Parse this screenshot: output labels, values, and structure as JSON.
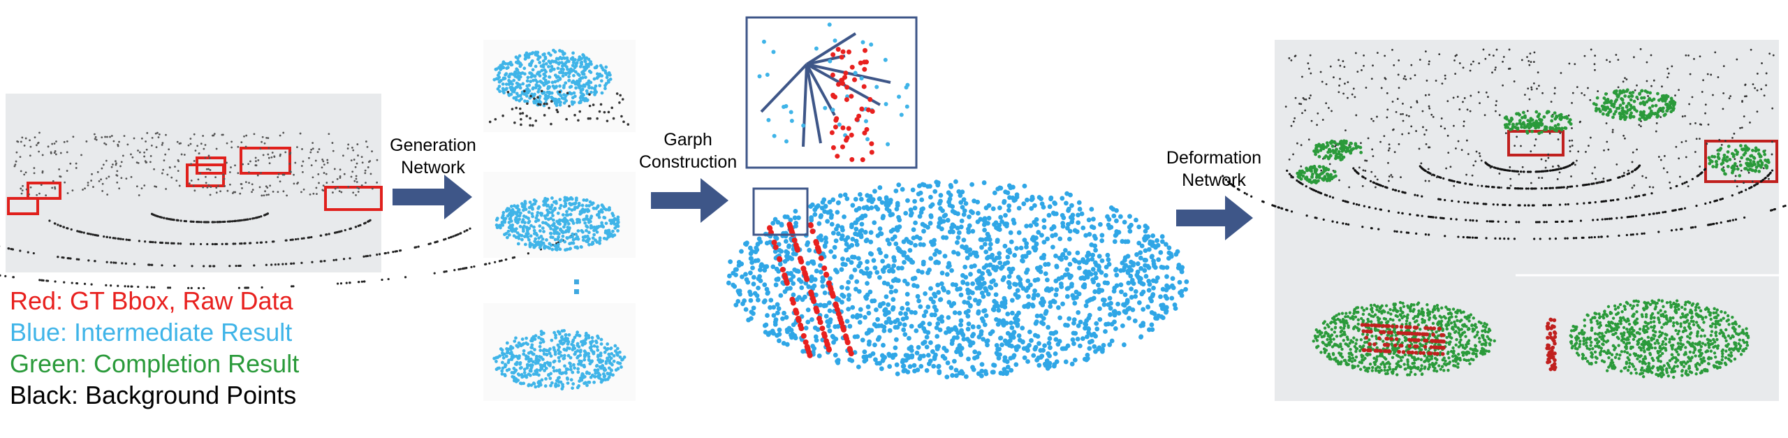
{
  "legend": [
    "Red: GT Bbox, Raw Data",
    "Blue: Intermediate Result",
    "Green: Completion Result",
    "Black: Background Points"
  ],
  "steps": [
    [
      "Generation",
      "Network"
    ],
    [
      "Garph",
      "Construction"
    ],
    [
      "Deformation",
      "Network"
    ]
  ]
}
